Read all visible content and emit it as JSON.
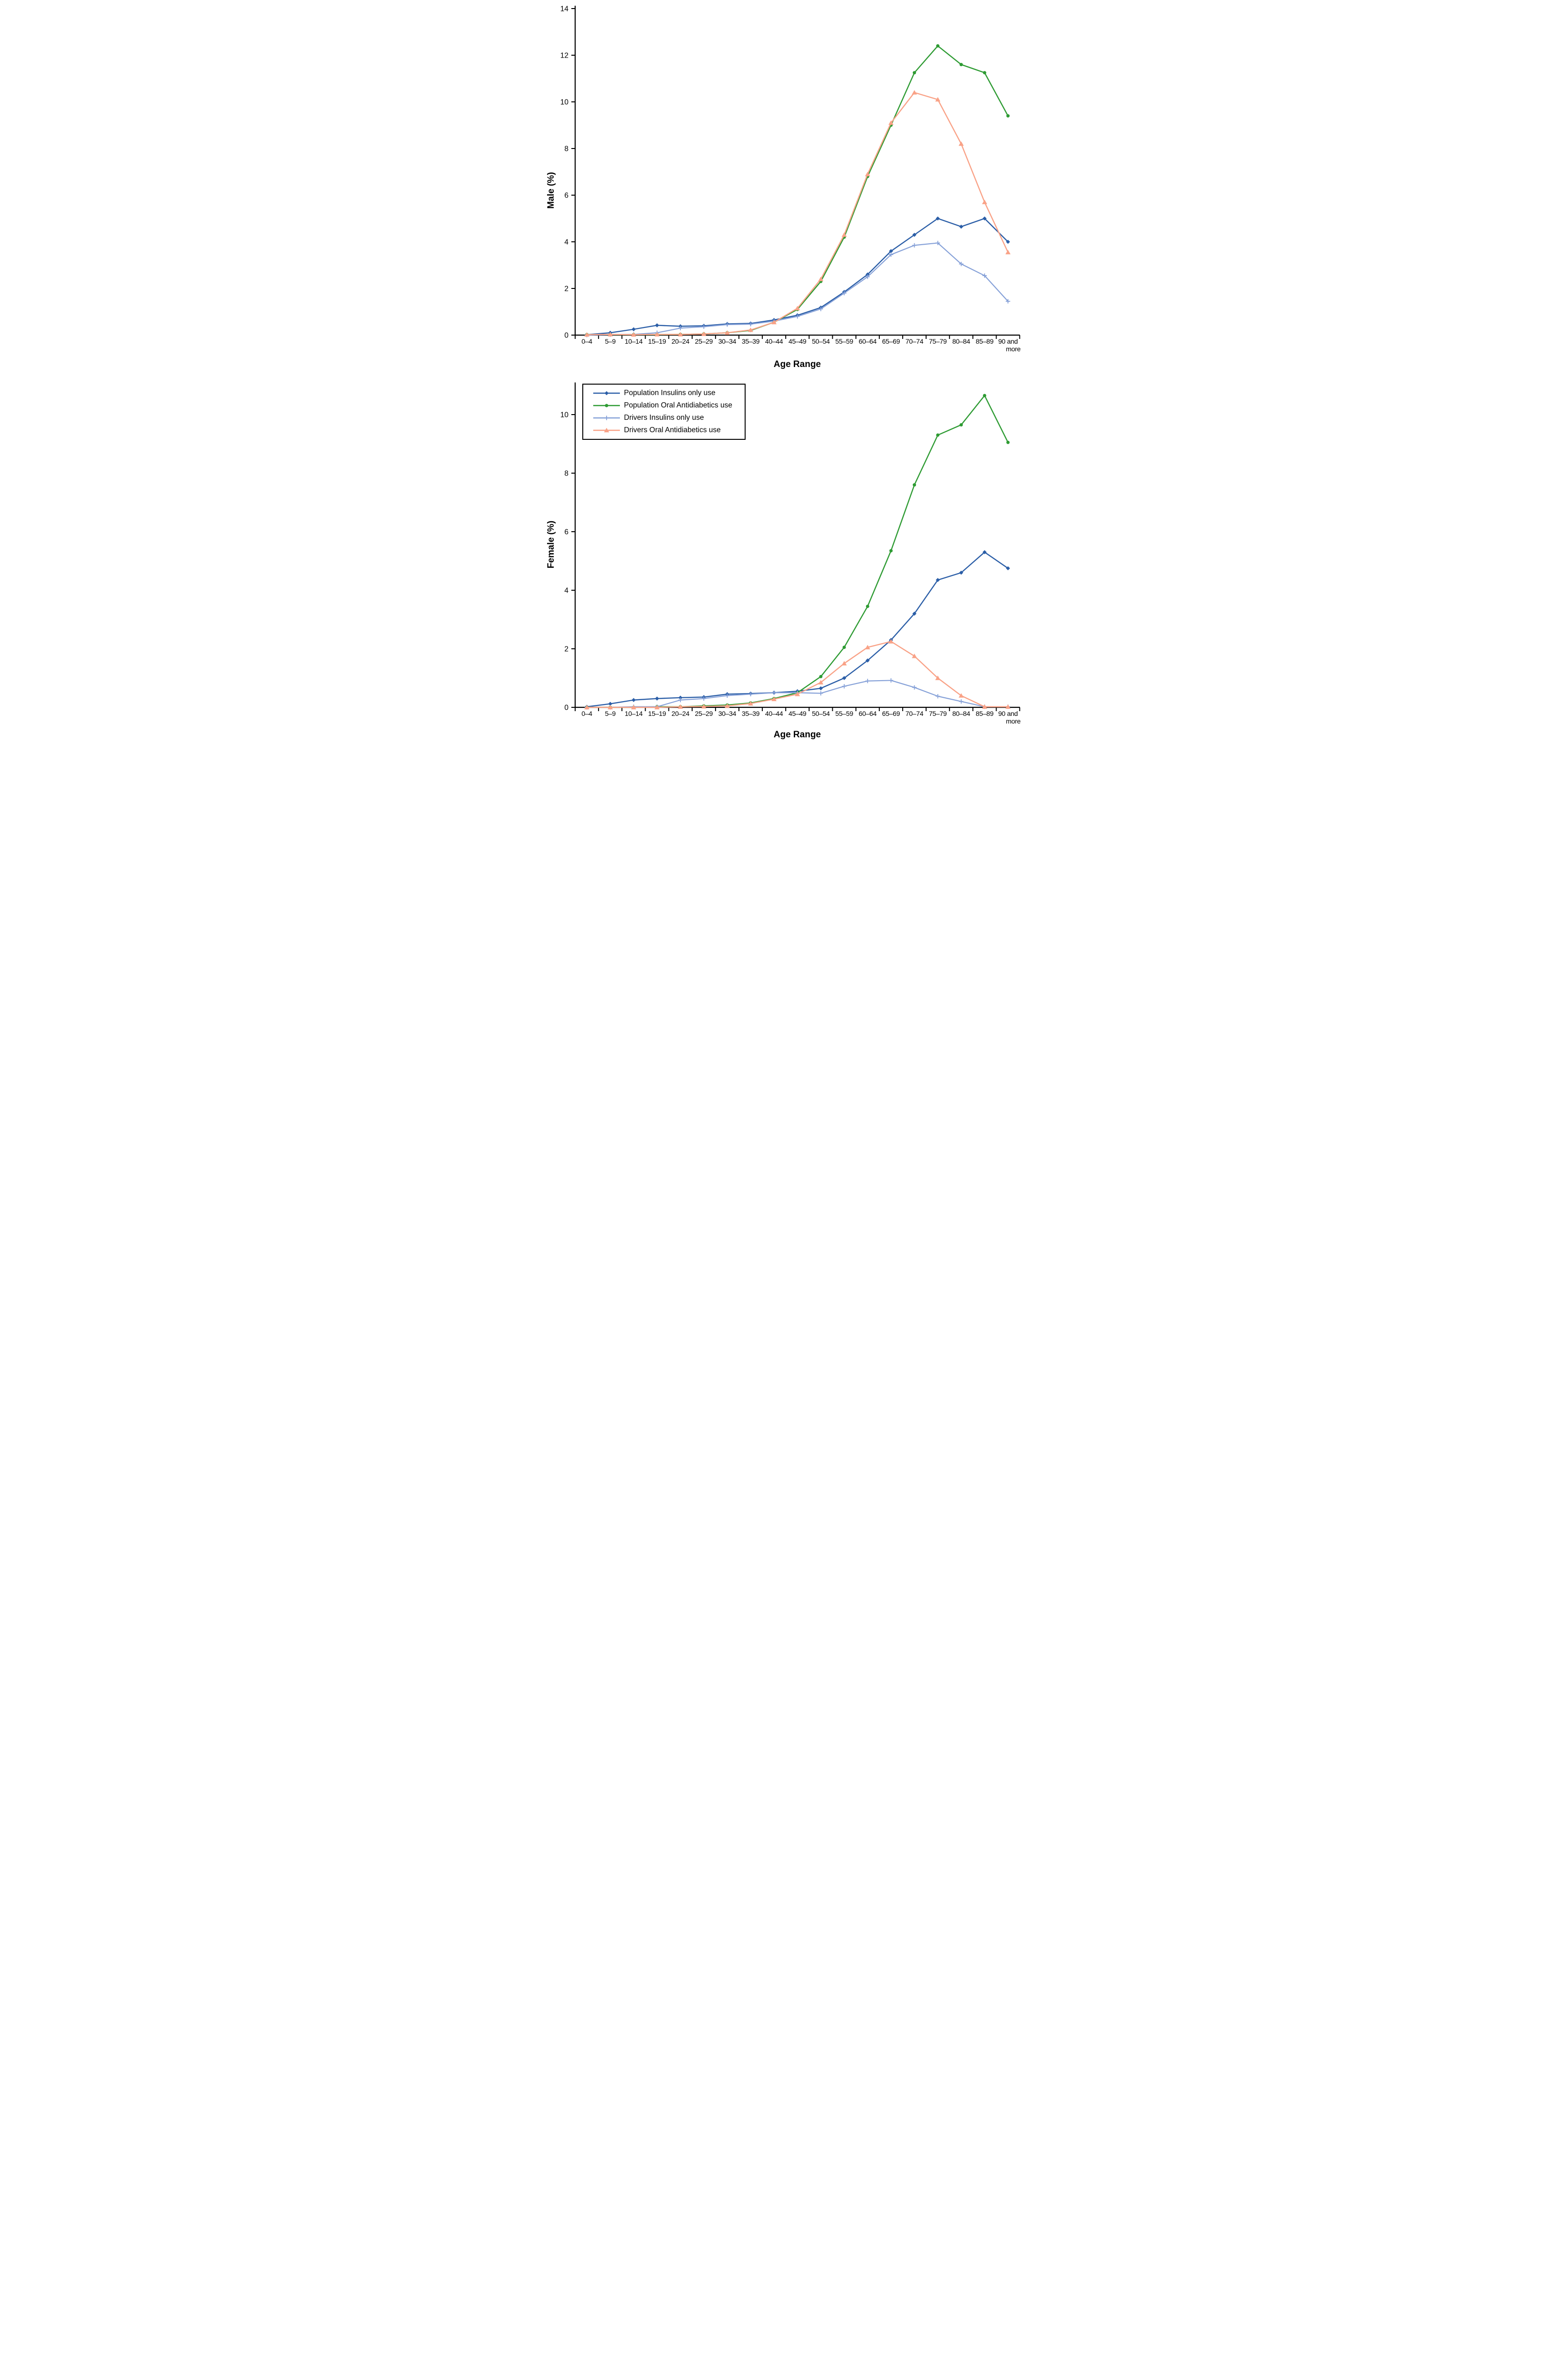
{
  "figure": {
    "background": "#ffffff",
    "axis_color": "#000000"
  },
  "chart_data": [
    {
      "type": "line",
      "title": "",
      "ylabel": "Male (%)",
      "xlabel": "Age Range",
      "ylim": [
        0,
        14
      ],
      "yticks": [
        0,
        2,
        4,
        6,
        8,
        10,
        12,
        14
      ],
      "grid": false,
      "legend_visible": false,
      "categories": [
        "0–4",
        "5–9",
        "10–14",
        "15–19",
        "20–24",
        "25–29",
        "30–34",
        "35–39",
        "40–44",
        "45–49",
        "50–54",
        "55–59",
        "60–64",
        "65–69",
        "70–74",
        "75–79",
        "80–84",
        "85–89",
        "90 and more"
      ],
      "series": [
        {
          "name": "Population Insulins only use",
          "color": "#2B5EA7",
          "marker": "diamond",
          "values": [
            0.02,
            0.1,
            0.25,
            0.42,
            0.38,
            0.4,
            0.48,
            0.5,
            0.65,
            0.85,
            1.18,
            1.85,
            2.6,
            3.6,
            4.3,
            5.0,
            4.65,
            5.0,
            4.0
          ]
        },
        {
          "name": "Population Oral Antidiabetics use",
          "color": "#2E9B33",
          "marker": "circle",
          "values": [
            0.02,
            0.02,
            0.02,
            0.02,
            0.03,
            0.05,
            0.1,
            0.2,
            0.55,
            1.1,
            2.3,
            4.2,
            6.8,
            9.0,
            11.25,
            12.4,
            11.6,
            11.25,
            9.4
          ]
        },
        {
          "name": "Drivers Insulins only use",
          "color": "#86A1D8",
          "marker": "plus",
          "values": [
            0.0,
            0.02,
            0.03,
            0.1,
            0.3,
            0.36,
            0.45,
            0.47,
            0.6,
            0.8,
            1.12,
            1.8,
            2.5,
            3.45,
            3.85,
            3.95,
            3.05,
            2.55,
            1.45
          ]
        },
        {
          "name": "Drivers Oral Antidiabetics use",
          "color": "#F9A287",
          "marker": "triangle",
          "values": [
            0.02,
            0.03,
            0.02,
            0.03,
            0.03,
            0.05,
            0.1,
            0.22,
            0.55,
            1.15,
            2.4,
            4.3,
            6.9,
            9.1,
            10.4,
            10.1,
            8.2,
            5.7,
            3.55
          ]
        }
      ]
    },
    {
      "type": "line",
      "title": "",
      "ylabel": "Female (%)",
      "xlabel": "Age Range",
      "ylim": [
        0,
        11
      ],
      "yticks": [
        0,
        2,
        4,
        6,
        8,
        10
      ],
      "grid": false,
      "legend_visible": true,
      "legend_position": "top-left",
      "categories": [
        "0–4",
        "5–9",
        "10–14",
        "15–19",
        "20–24",
        "25–29",
        "30–34",
        "35–39",
        "40–44",
        "45–49",
        "50–54",
        "55–59",
        "60–64",
        "65–69",
        "70–74",
        "75–79",
        "80–84",
        "85–89",
        "90 and more"
      ],
      "series": [
        {
          "name": "Population Insulins only use",
          "color": "#2B5EA7",
          "marker": "diamond",
          "values": [
            0.02,
            0.12,
            0.25,
            0.3,
            0.33,
            0.35,
            0.45,
            0.47,
            0.5,
            0.55,
            0.65,
            1.0,
            1.6,
            2.3,
            3.2,
            4.35,
            4.6,
            5.3,
            4.75
          ]
        },
        {
          "name": "Population Oral Antidiabetics use",
          "color": "#2E9B33",
          "marker": "circle",
          "values": [
            0.0,
            0.0,
            0.0,
            0.02,
            0.02,
            0.05,
            0.08,
            0.15,
            0.3,
            0.5,
            1.05,
            2.05,
            3.45,
            5.35,
            7.6,
            9.3,
            9.65,
            10.65,
            9.05
          ]
        },
        {
          "name": "Drivers Insulins only use",
          "color": "#86A1D8",
          "marker": "plus",
          "values": [
            0.0,
            0.0,
            0.02,
            0.02,
            0.25,
            0.3,
            0.4,
            0.45,
            0.5,
            0.5,
            0.48,
            0.72,
            0.9,
            0.92,
            0.68,
            0.38,
            0.2,
            0.02,
            0.02
          ]
        },
        {
          "name": "Drivers Oral Antidiabetics use",
          "color": "#F9A287",
          "marker": "triangle",
          "values": [
            0.0,
            0.0,
            0.0,
            0.0,
            0.02,
            0.03,
            0.05,
            0.13,
            0.28,
            0.45,
            0.85,
            1.5,
            2.05,
            2.25,
            1.75,
            1.0,
            0.4,
            0.02,
            0.02
          ]
        }
      ]
    }
  ]
}
